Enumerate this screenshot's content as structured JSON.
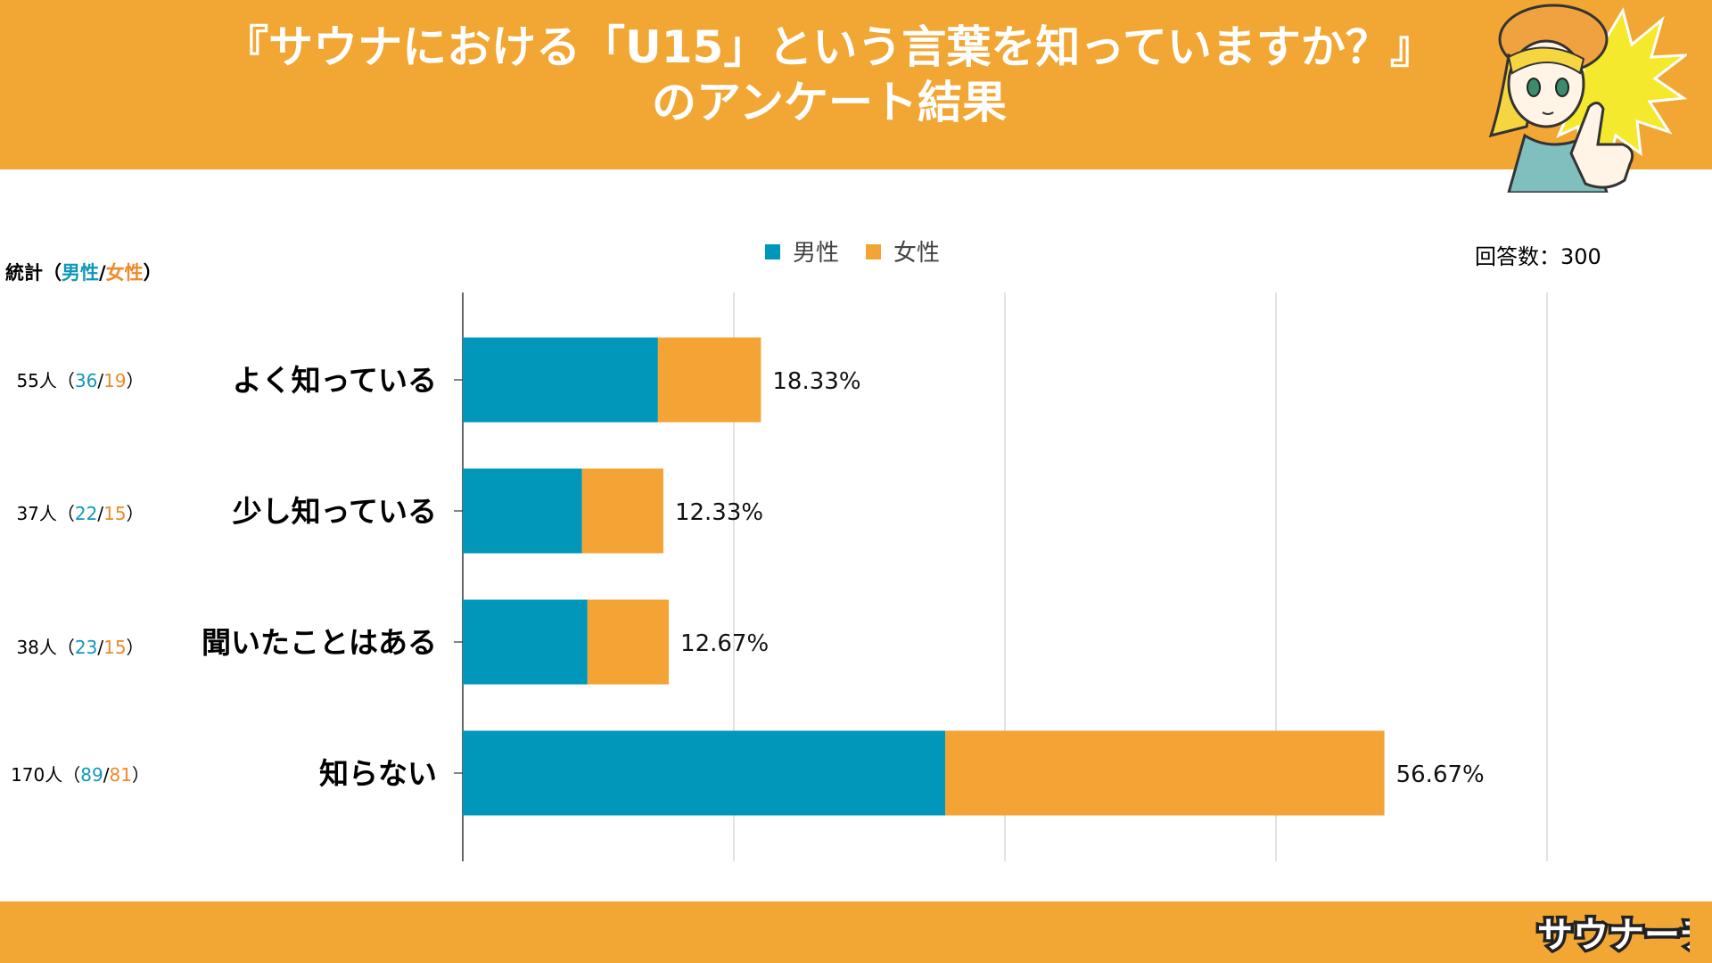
{
  "header": {
    "title_line1": "『サウナにおける「U15」という言葉を知っていますか？』",
    "title_line2": "のアンケート結果"
  },
  "stats": {
    "label_prefix": "統計（",
    "male_label": "男性",
    "slash": "/",
    "female_label": "女性",
    "label_suffix": "）",
    "rows": [
      {
        "total": "55人",
        "open": "（",
        "male": "36",
        "sep": "/",
        "female": "19",
        "close": "）"
      },
      {
        "total": "37人",
        "open": "（",
        "male": "22",
        "sep": "/",
        "female": "15",
        "close": "）"
      },
      {
        "total": "38人",
        "open": "（",
        "male": "23",
        "sep": "/",
        "female": "15",
        "close": "）"
      },
      {
        "total": "170人",
        "open": "（",
        "male": "89",
        "sep": "/",
        "female": "81",
        "close": "）"
      }
    ]
  },
  "respondents": "回答数：300",
  "logo_text": "サウナーチ",
  "colors": {
    "male": "#0097bb",
    "female": "#f4a335",
    "header": "#f2a633"
  },
  "chart_data": {
    "type": "bar",
    "orientation": "horizontal",
    "stacked": true,
    "categories": [
      "よく知っている",
      "少し知っている",
      "聞いたことはある",
      "知らない"
    ],
    "series": [
      {
        "name": "男性",
        "values": [
          36,
          22,
          23,
          89
        ]
      },
      {
        "name": "女性",
        "values": [
          19,
          15,
          15,
          81
        ]
      }
    ],
    "data_labels": [
      "18.33%",
      "12.33%",
      "12.67%",
      "56.67%"
    ],
    "xlim": [
      0,
      200
    ],
    "grid": true,
    "legend": "top-center"
  }
}
